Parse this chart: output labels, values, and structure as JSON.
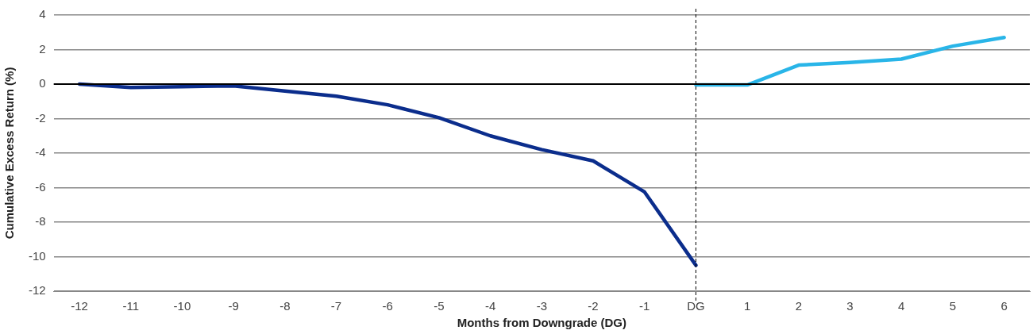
{
  "chart_data": {
    "type": "line",
    "xlabel": "Months from Downgrade (DG)",
    "ylabel": "Cumulative Excess Return (%)",
    "categories": [
      "-12",
      "-11",
      "-10",
      "-9",
      "-8",
      "-7",
      "-6",
      "-5",
      "-4",
      "-3",
      "-2",
      "-1",
      "DG",
      "1",
      "2",
      "3",
      "4",
      "5",
      "6"
    ],
    "series": [
      {
        "color": "#0b2d8c",
        "values": [
          0,
          -0.2,
          -0.15,
          -0.1,
          -0.4,
          -0.7,
          -1.2,
          -1.95,
          -3.0,
          -3.8,
          -4.45,
          -6.25,
          -10.5,
          null,
          null,
          null,
          null,
          null,
          null
        ]
      },
      {
        "color": "#29b5e8",
        "values": [
          null,
          null,
          null,
          null,
          null,
          null,
          null,
          null,
          null,
          null,
          null,
          null,
          -0.05,
          -0.05,
          1.1,
          1.25,
          1.45,
          2.2,
          2.7
        ]
      }
    ],
    "ylim": [
      -12,
      4
    ],
    "yticks": [
      -12,
      -10,
      -8,
      -6,
      -4,
      -2,
      0,
      2,
      4
    ],
    "grid": "y",
    "legend": false,
    "marker": "none",
    "line_style": "solid",
    "ref_lines": [
      {
        "axis": "y",
        "value": 0,
        "color": "#000000"
      },
      {
        "axis": "x",
        "value": "DG",
        "color": "#000000",
        "line_style": "dashed"
      }
    ]
  }
}
